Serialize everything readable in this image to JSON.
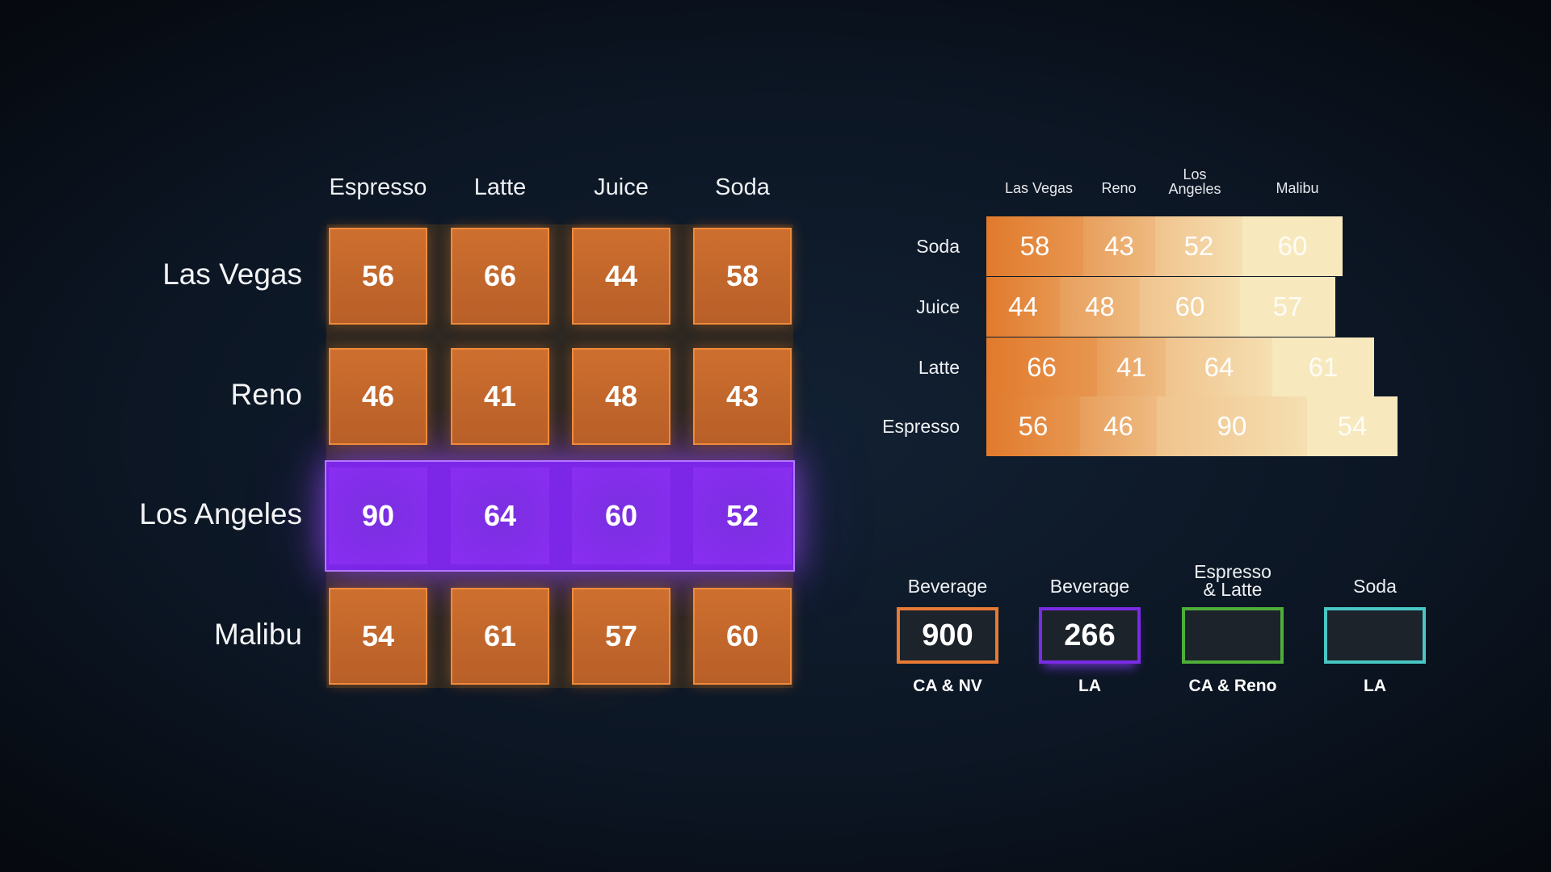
{
  "chart_data": [
    {
      "type": "heatmap",
      "columns": [
        "Espresso",
        "Latte",
        "Juice",
        "Soda"
      ],
      "rows": [
        "Las Vegas",
        "Reno",
        "Los Angeles",
        "Malibu"
      ],
      "values": [
        [
          56,
          66,
          44,
          58
        ],
        [
          46,
          41,
          48,
          43
        ],
        [
          90,
          64,
          60,
          52
        ],
        [
          54,
          61,
          57,
          60
        ]
      ],
      "highlighted_row": "Los Angeles"
    },
    {
      "type": "bar",
      "stacked": true,
      "orientation": "horizontal",
      "categories": [
        "Soda",
        "Juice",
        "Latte",
        "Espresso"
      ],
      "series": [
        {
          "name": "Las Vegas",
          "values": [
            58,
            44,
            66,
            56
          ]
        },
        {
          "name": "Reno",
          "values": [
            43,
            48,
            41,
            46
          ]
        },
        {
          "name": "Los Angeles",
          "values": [
            52,
            60,
            64,
            90
          ]
        },
        {
          "name": "Malibu",
          "values": [
            60,
            57,
            61,
            54
          ]
        }
      ],
      "column_labels": [
        "Las Vegas",
        "Reno",
        "Los Angeles",
        "Malibu"
      ]
    }
  ],
  "summary": [
    {
      "label": "Beverage",
      "value": "900",
      "sub": "CA & NV",
      "color": "#e87a34"
    },
    {
      "label": "Beverage",
      "value": "266",
      "sub": "LA",
      "color": "#7a2be6"
    },
    {
      "label": "Espresso & Latte",
      "value": "",
      "sub": "CA & Reno",
      "color": "#4fae3a"
    },
    {
      "label": "Soda",
      "value": "",
      "sub": "LA",
      "color": "#49c7c4"
    }
  ],
  "colors": {
    "orange": "#c4682d",
    "purple": "#8a2ef2",
    "heat_low": "#f7e8bd",
    "heat_high": "#e17a2c"
  }
}
